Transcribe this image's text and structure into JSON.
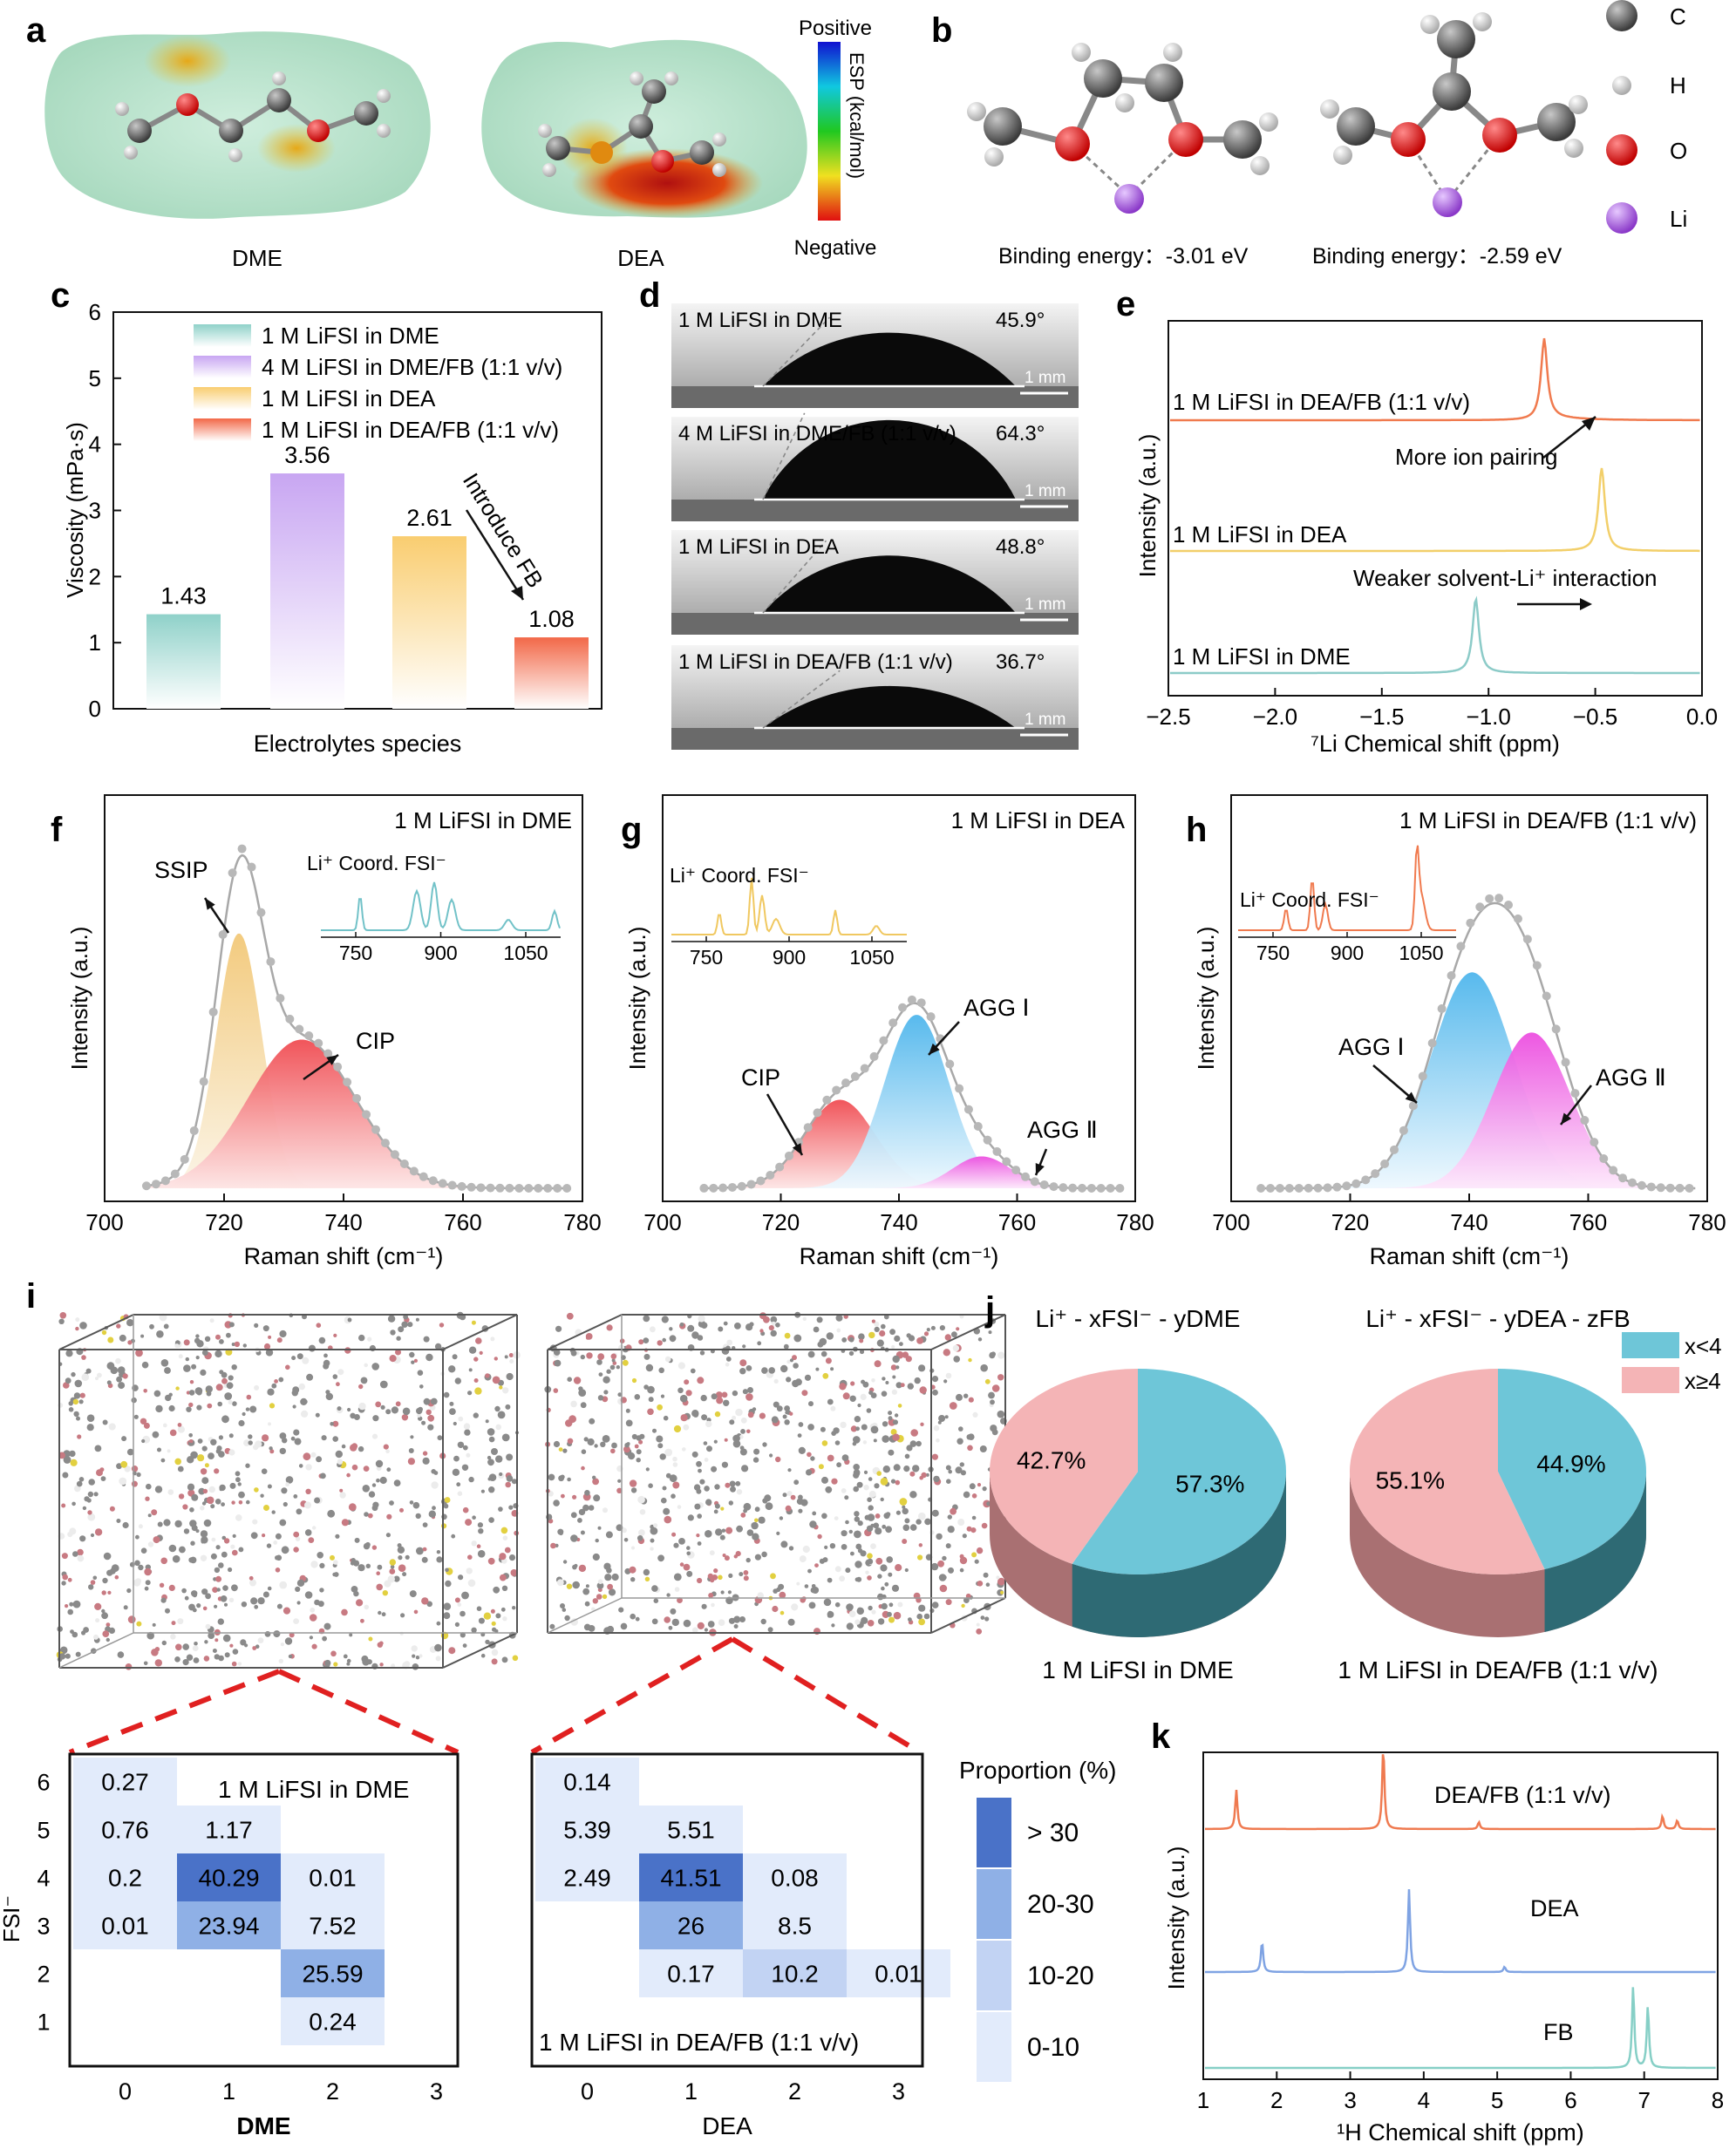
{
  "panels": {
    "a": {
      "letter": "a",
      "molecules": [
        "DME",
        "DEA"
      ],
      "colorbar": {
        "top": "Positive",
        "bottom": "Negative",
        "label": "ESP (kcal/mol)"
      }
    },
    "b": {
      "letter": "b",
      "binding": [
        "Binding energy：-3.01 eV",
        "Binding energy：-2.59 eV"
      ],
      "legend": [
        "C",
        "H",
        "O",
        "Li"
      ],
      "colors": {
        "C": "#5a5a5a",
        "H": "#d8d8d8",
        "O": "#e01010",
        "Li": "#a050d8"
      }
    },
    "c": {
      "letter": "c",
      "annotation": "Introduce FB",
      "chart_data": {
        "type": "bar",
        "title": "",
        "xlabel": "Electrolytes species",
        "ylabel": "Viscosity (mPa·s)",
        "ylim": [
          0,
          6
        ],
        "yticks": [
          "0",
          "1",
          "2",
          "3",
          "4",
          "5",
          "6"
        ],
        "categories": [
          "1 M LiFSI in DME",
          "4 M LiFSI in DME/FB (1:1 v/v)",
          "1 M LiFSI in DEA",
          "1 M LiFSI in DEA/FB (1:1 v/v)"
        ],
        "values": [
          1.43,
          3.56,
          2.61,
          1.08
        ],
        "labels": [
          "1.43",
          "3.56",
          "2.61",
          "1.08"
        ],
        "colors": [
          "#a8dcd6",
          "#d9c2f4",
          "#fad58a",
          "#f47a5e"
        ]
      }
    },
    "d": {
      "letter": "d",
      "scale": "1 mm",
      "images": [
        {
          "label": "1 M LiFSI in DME",
          "angle": "45.9°",
          "angle_deg": 45.9
        },
        {
          "label": "4 M LiFSI in DME/FB (1:1 v/v)",
          "angle": "64.3°",
          "angle_deg": 64.3
        },
        {
          "label": "1 M LiFSI in DEA",
          "angle": "48.8°",
          "angle_deg": 48.8
        },
        {
          "label": "1 M LiFSI in DEA/FB (1:1 v/v)",
          "angle": "36.7°",
          "angle_deg": 36.7
        }
      ]
    },
    "e": {
      "letter": "e",
      "annotations": [
        "More ion pairing",
        "Weaker solvent-Li⁺ interaction"
      ],
      "chart_data": {
        "type": "line",
        "xlabel": "⁷Li Chemical shift (ppm)",
        "ylabel": "Intensity (a.u.)",
        "xlim": [
          -2.5,
          0.0
        ],
        "xticks": [
          "−2.5",
          "−2.0",
          "−1.5",
          "−1.0",
          "−0.5",
          "0.0"
        ],
        "series": [
          {
            "name": "1 M LiFSI in DEA/FB (1:1 v/v)",
            "peak_ppm": -0.74,
            "color": "#f07a4e"
          },
          {
            "name": "1 M LiFSI in DEA",
            "peak_ppm": -0.47,
            "color": "#f2cf6a"
          },
          {
            "name": "1 M LiFSI in DME",
            "peak_ppm": -1.06,
            "color": "#8ccbc8"
          }
        ]
      }
    },
    "f": {
      "letter": "f",
      "title": "1 M LiFSI in DME",
      "peaks": [
        "SSIP",
        "CIP"
      ],
      "inset": {
        "label": "Li⁺ Coord. FSI⁻",
        "ticks": [
          "750",
          "900",
          "1050"
        ]
      },
      "chart_data": {
        "type": "area",
        "xlabel": "Raman shift (cm⁻¹)",
        "ylabel": "Intensity (a.u.)",
        "xlim": [
          700,
          780
        ],
        "xticks": [
          "700",
          "720",
          "740",
          "760",
          "780"
        ],
        "components": [
          {
            "name": "SSIP",
            "center": 722.5,
            "height": 0.72,
            "width": 3.8
          },
          {
            "name": "CIP",
            "center": 733,
            "height": 0.42,
            "width": 9
          }
        ]
      }
    },
    "g": {
      "letter": "g",
      "title": "1 M LiFSI in DEA",
      "peaks": [
        "CIP",
        "AGG Ⅰ",
        "AGG Ⅱ"
      ],
      "inset": {
        "label": "Li⁺ Coord. FSI⁻",
        "ticks": [
          "750",
          "900",
          "1050"
        ]
      },
      "chart_data": {
        "type": "area",
        "xlabel": "Raman shift (cm⁻¹)",
        "ylabel": "Intensity (a.u.)",
        "xlim": [
          700,
          780
        ],
        "xticks": [
          "700",
          "720",
          "740",
          "760",
          "780"
        ],
        "components": [
          {
            "name": "CIP",
            "center": 730,
            "height": 0.25,
            "width": 6
          },
          {
            "name": "AGG Ⅰ",
            "center": 743,
            "height": 0.49,
            "width": 5.5
          },
          {
            "name": "AGG Ⅱ",
            "center": 754,
            "height": 0.09,
            "width": 5
          }
        ]
      }
    },
    "h": {
      "letter": "h",
      "title": "1 M LiFSI in DEA/FB (1:1 v/v)",
      "peaks": [
        "AGG Ⅰ",
        "AGG Ⅱ"
      ],
      "inset": {
        "label": "Li⁺ Coord. FSI⁻",
        "ticks": [
          "750",
          "900",
          "1050"
        ]
      },
      "chart_data": {
        "type": "area",
        "xlabel": "Raman shift (cm⁻¹)",
        "ylabel": "Intensity (a.u.)",
        "xlim": [
          700,
          780
        ],
        "xticks": [
          "700",
          "720",
          "740",
          "760",
          "780"
        ],
        "components": [
          {
            "name": "AGG Ⅰ",
            "center": 740.5,
            "height": 0.61,
            "width": 7
          },
          {
            "name": "AGG Ⅱ",
            "center": 750.5,
            "height": 0.44,
            "width": 6.5
          }
        ]
      }
    },
    "i": {
      "letter": "i",
      "heatmaps": [
        {
          "title": "1 M LiFSI in DME",
          "xlabel": "DME",
          "ylabel": "FSI⁻",
          "xticks": [
            "0",
            "1",
            "2",
            "3"
          ],
          "yticks": [
            "6",
            "5",
            "4",
            "3",
            "2",
            "1"
          ],
          "cells": [
            {
              "x": 0,
              "y": 6,
              "v": 0.27,
              "t": "0.27"
            },
            {
              "x": 0,
              "y": 5,
              "v": 0.76,
              "t": "0.76"
            },
            {
              "x": 1,
              "y": 5,
              "v": 1.17,
              "t": "1.17"
            },
            {
              "x": 0,
              "y": 4,
              "v": 0.2,
              "t": "0.2"
            },
            {
              "x": 1,
              "y": 4,
              "v": 40.29,
              "t": "40.29"
            },
            {
              "x": 2,
              "y": 4,
              "v": 0.01,
              "t": "0.01"
            },
            {
              "x": 0,
              "y": 3,
              "v": 0.01,
              "t": "0.01"
            },
            {
              "x": 1,
              "y": 3,
              "v": 23.94,
              "t": "23.94"
            },
            {
              "x": 2,
              "y": 3,
              "v": 7.52,
              "t": "7.52"
            },
            {
              "x": 2,
              "y": 2,
              "v": 25.59,
              "t": "25.59"
            },
            {
              "x": 2,
              "y": 1,
              "v": 0.24,
              "t": "0.24"
            }
          ]
        },
        {
          "title": "1 M LiFSI in DEA/FB (1:1 v/v)",
          "xlabel": "DEA",
          "ylabel": "",
          "xticks": [
            "0",
            "1",
            "2",
            "3"
          ],
          "yticks": [],
          "cells": [
            {
              "x": 0,
              "y": 6,
              "v": 0.14,
              "t": "0.14"
            },
            {
              "x": 0,
              "y": 5,
              "v": 5.39,
              "t": "5.39"
            },
            {
              "x": 1,
              "y": 5,
              "v": 5.51,
              "t": "5.51"
            },
            {
              "x": 0,
              "y": 4,
              "v": 2.49,
              "t": "2.49"
            },
            {
              "x": 1,
              "y": 4,
              "v": 41.51,
              "t": "41.51"
            },
            {
              "x": 2,
              "y": 4,
              "v": 0.08,
              "t": "0.08"
            },
            {
              "x": 1,
              "y": 3,
              "v": 26,
              "t": "26"
            },
            {
              "x": 2,
              "y": 3,
              "v": 8.5,
              "t": "8.5"
            },
            {
              "x": 1,
              "y": 2,
              "v": 0.17,
              "t": "0.17"
            },
            {
              "x": 2,
              "y": 2,
              "v": 10.2,
              "t": "10.2"
            },
            {
              "x": 3,
              "y": 2,
              "v": 0.01,
              "t": "0.01"
            }
          ]
        }
      ],
      "proportion_legend": {
        "title": "Proportion (%)",
        "items": [
          {
            "label": "> 30",
            "color": "#4a72c8"
          },
          {
            "label": "20-30",
            "color": "#8fb0e6"
          },
          {
            "label": "10-20",
            "color": "#c2d3f3"
          },
          {
            "label": "0-10",
            "color": "#e2ebfb"
          }
        ]
      }
    },
    "j": {
      "letter": "j",
      "legend": [
        {
          "label": "x<4",
          "color": "#6ec6d8"
        },
        {
          "label": "x≥4",
          "color": "#f4b4b6"
        }
      ],
      "chart_data": {
        "type": "pie",
        "pies": [
          {
            "title": "Li⁺ - xFSI⁻ - yDME",
            "caption": "1 M LiFSI in DME",
            "slices": [
              {
                "name": "x<4",
                "value": 57.3,
                "label": "57.3%"
              },
              {
                "name": "x≥4",
                "value": 42.7,
                "label": "42.7%"
              }
            ]
          },
          {
            "title": "Li⁺ - xFSI⁻ - yDEA - zFB",
            "caption": "1 M LiFSI in DEA/FB (1:1 v/v)",
            "slices": [
              {
                "name": "x<4",
                "value": 44.9,
                "label": "44.9%"
              },
              {
                "name": "x≥4",
                "value": 55.1,
                "label": "55.1%"
              }
            ]
          }
        ]
      }
    },
    "k": {
      "letter": "k",
      "chart_data": {
        "type": "line",
        "xlabel": "¹H Chemical shift (ppm)",
        "ylabel": "Intensity (a.u.)",
        "xlim": [
          1,
          8
        ],
        "xticks": [
          "1",
          "2",
          "3",
          "4",
          "5",
          "6",
          "7",
          "8"
        ],
        "series": [
          {
            "name": "DEA/FB (1:1 v/v)",
            "color": "#ef7a50",
            "peaks": [
              {
                "x": 1.45,
                "h": 0.45
              },
              {
                "x": 3.45,
                "h": 0.95
              },
              {
                "x": 4.75,
                "h": 0.08
              },
              {
                "x": 7.25,
                "h": 0.15
              },
              {
                "x": 7.45,
                "h": 0.1
              }
            ]
          },
          {
            "name": "DEA",
            "color": "#7fa3e3",
            "peaks": [
              {
                "x": 1.8,
                "h": 0.35
              },
              {
                "x": 3.8,
                "h": 0.95
              },
              {
                "x": 5.1,
                "h": 0.06
              }
            ]
          },
          {
            "name": "FB",
            "color": "#86cfc6",
            "peaks": [
              {
                "x": 6.85,
                "h": 0.95
              },
              {
                "x": 7.05,
                "h": 0.72
              }
            ]
          }
        ]
      }
    }
  }
}
